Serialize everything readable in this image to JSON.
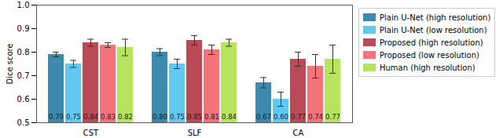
{
  "chart_data": {
    "type": "bar",
    "categories": [
      "CST",
      "SLF",
      "CA"
    ],
    "y_label": "Dice score",
    "ylim": [
      0.5,
      1.0
    ],
    "yticks": [
      0.5,
      0.6,
      0.7,
      0.8,
      0.9,
      {
        "value": 1.0,
        "label": "1.0"
      }
    ],
    "data_labels": true,
    "legend": "right",
    "series": [
      {
        "name": "Plain U-Net (high resolution)",
        "color": "#3c8aae",
        "values": [
          0.79,
          0.8,
          0.67
        ],
        "value_labels": [
          "0.79",
          "0.80",
          "0.67"
        ],
        "errors": [
          0.01,
          0.015,
          0.022
        ]
      },
      {
        "name": "Plain U-Net (low resolution)",
        "color": "#62c8f0",
        "values": [
          0.75,
          0.75,
          0.6
        ],
        "value_labels": [
          "0.75",
          "0.75",
          "0.60"
        ],
        "errors": [
          0.015,
          0.02,
          0.03
        ]
      },
      {
        "name": "Proposed (high resolution)",
        "color": "#b94a56",
        "values": [
          0.84,
          0.85,
          0.77
        ],
        "value_labels": [
          "0.84",
          "0.85",
          "0.77"
        ],
        "errors": [
          0.015,
          0.02,
          0.03
        ]
      },
      {
        "name": "Proposed (low resolution)",
        "color": "#f2737a",
        "values": [
          0.83,
          0.81,
          0.74
        ],
        "value_labels": [
          "0.83",
          "0.81",
          "0.74"
        ],
        "errors": [
          0.01,
          0.02,
          0.05
        ]
      },
      {
        "name": "Human (high resolution)",
        "color": "#b8e35e",
        "values": [
          0.82,
          0.84,
          0.77
        ],
        "value_labels": [
          "0.82",
          "0.84",
          "0.77"
        ],
        "errors": [
          0.035,
          0.015,
          0.06
        ]
      }
    ]
  }
}
